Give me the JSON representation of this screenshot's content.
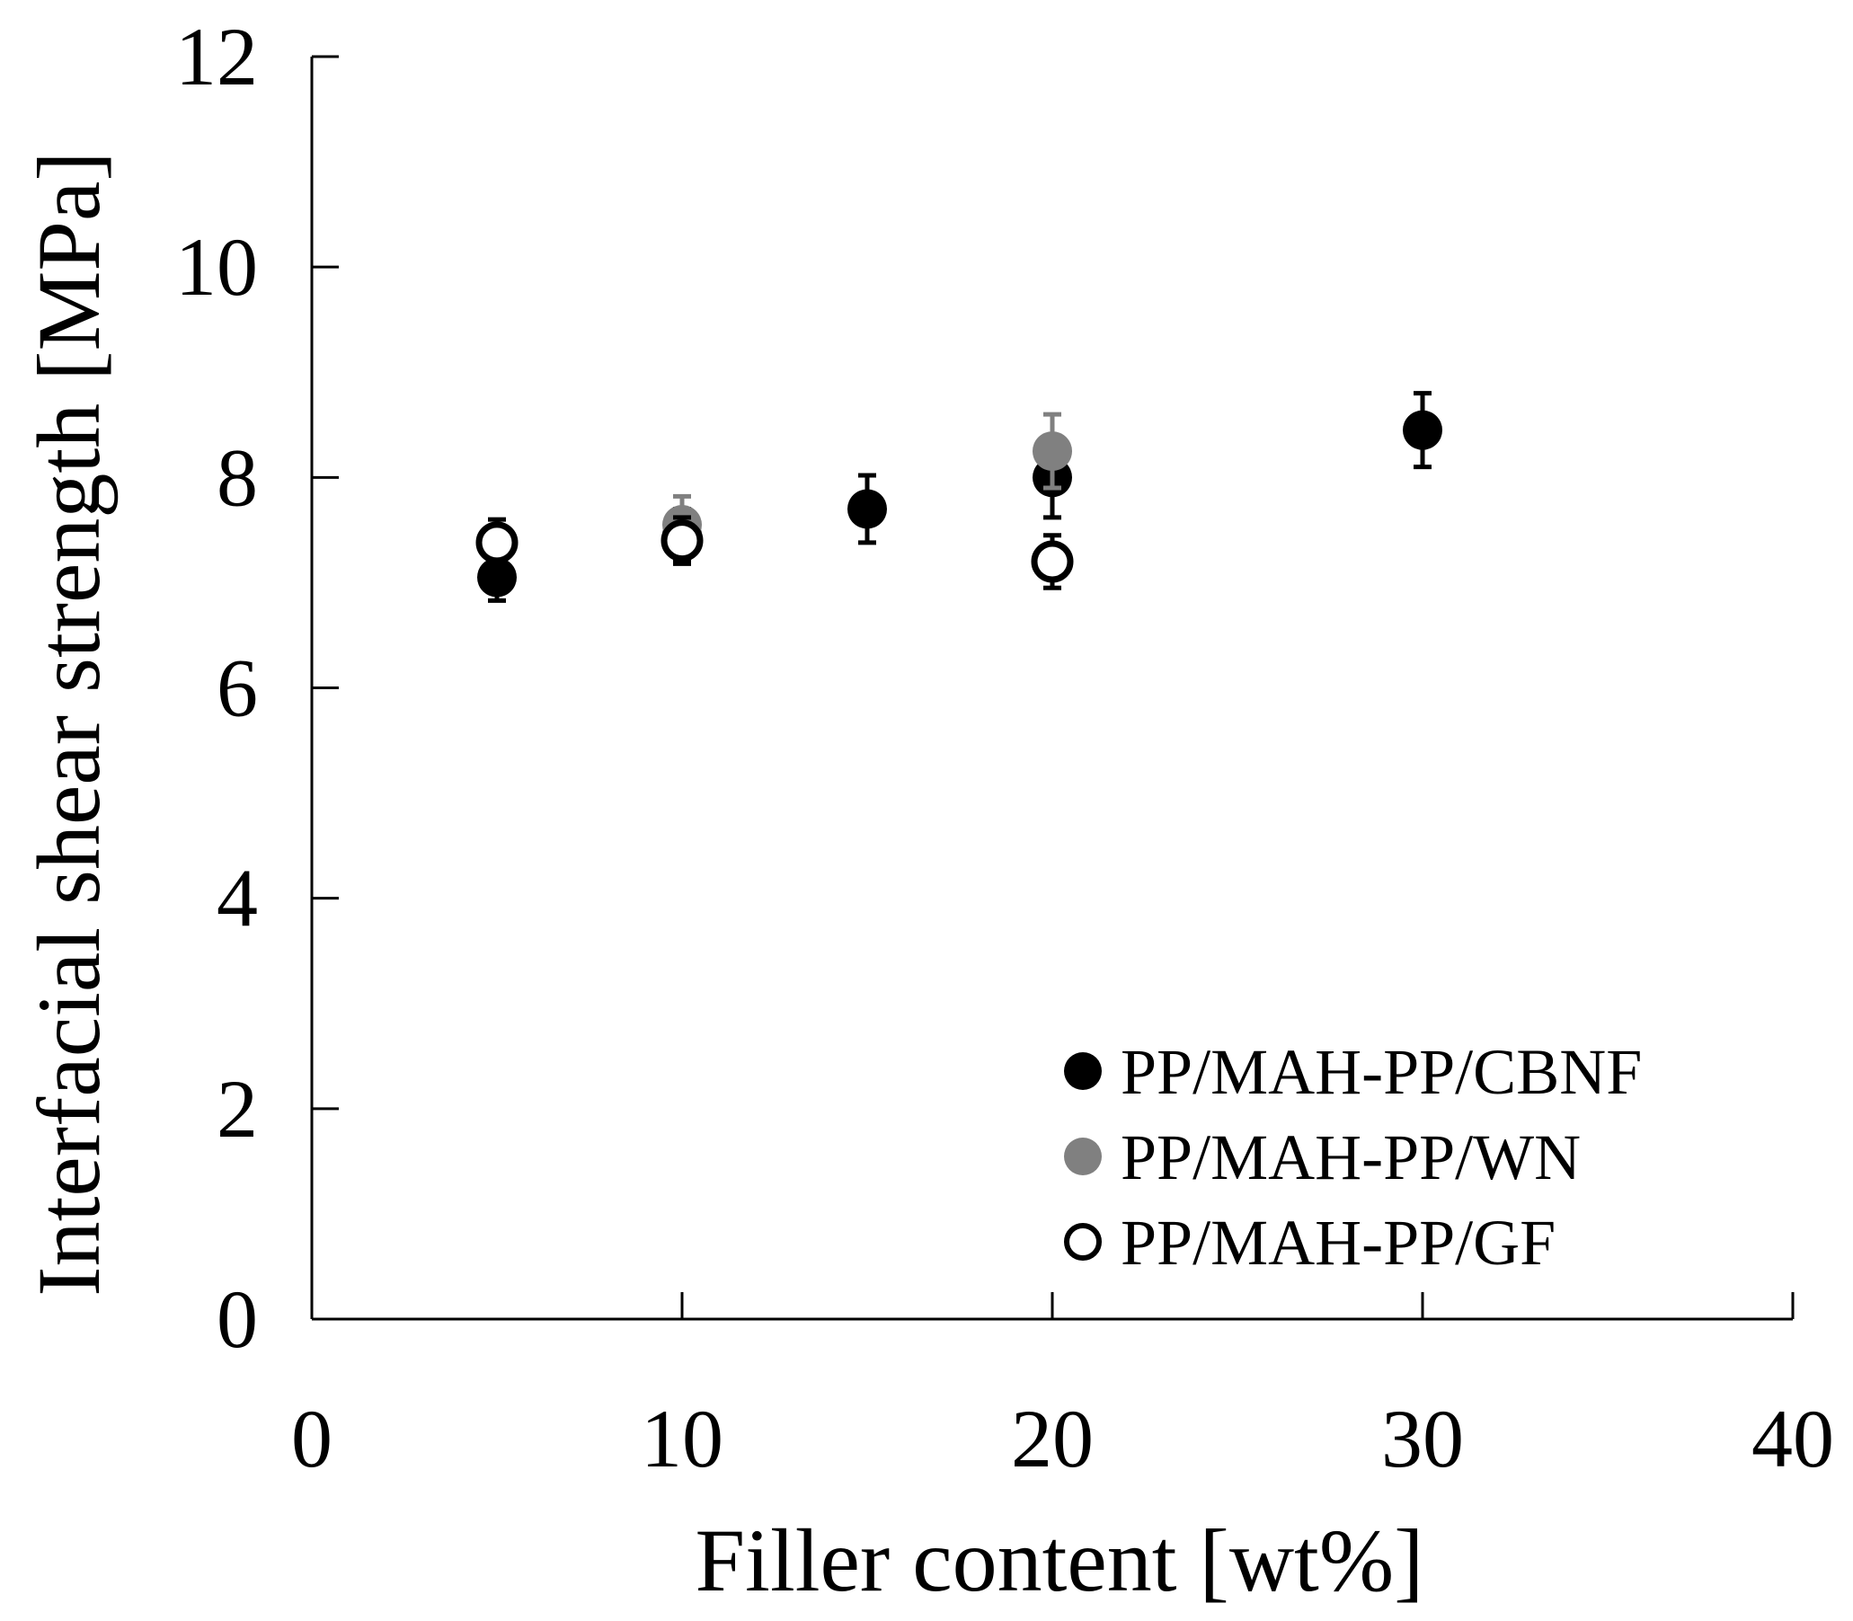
{
  "chart_data": {
    "type": "scatter",
    "title": "",
    "xlabel": "Filler content [wt%]",
    "ylabel": "Interfacial shear strength [MPa]",
    "xlim": [
      0,
      40
    ],
    "ylim": [
      0,
      12
    ],
    "x_ticks": [
      0,
      10,
      20,
      30,
      40
    ],
    "y_ticks": [
      0,
      2,
      4,
      6,
      8,
      10,
      12
    ],
    "grid": false,
    "legend_position": "bottom-right",
    "series": [
      {
        "name": "PP/MAH-PP/CBNF",
        "marker": "filled-circle",
        "color": "#000000",
        "points": [
          {
            "x": 5,
            "y": 7.05,
            "err": 0.22
          },
          {
            "x": 10,
            "y": 7.45,
            "err": 0.25
          },
          {
            "x": 15,
            "y": 7.7,
            "err": 0.32
          },
          {
            "x": 20,
            "y": 8.0,
            "err": 0.38
          },
          {
            "x": 30,
            "y": 8.45,
            "err": 0.35
          }
        ]
      },
      {
        "name": "PP/MAH-PP/WN",
        "marker": "filled-circle",
        "color": "#808080",
        "points": [
          {
            "x": 10,
            "y": 7.55,
            "err": 0.27
          },
          {
            "x": 20,
            "y": 8.25,
            "err": 0.35
          }
        ]
      },
      {
        "name": "PP/MAH-PP/GF",
        "marker": "open-circle",
        "color": "#000000",
        "points": [
          {
            "x": 5,
            "y": 7.38,
            "err": 0.22
          },
          {
            "x": 10,
            "y": 7.4,
            "err": 0.22
          },
          {
            "x": 20,
            "y": 7.2,
            "err": 0.25
          }
        ]
      }
    ]
  }
}
